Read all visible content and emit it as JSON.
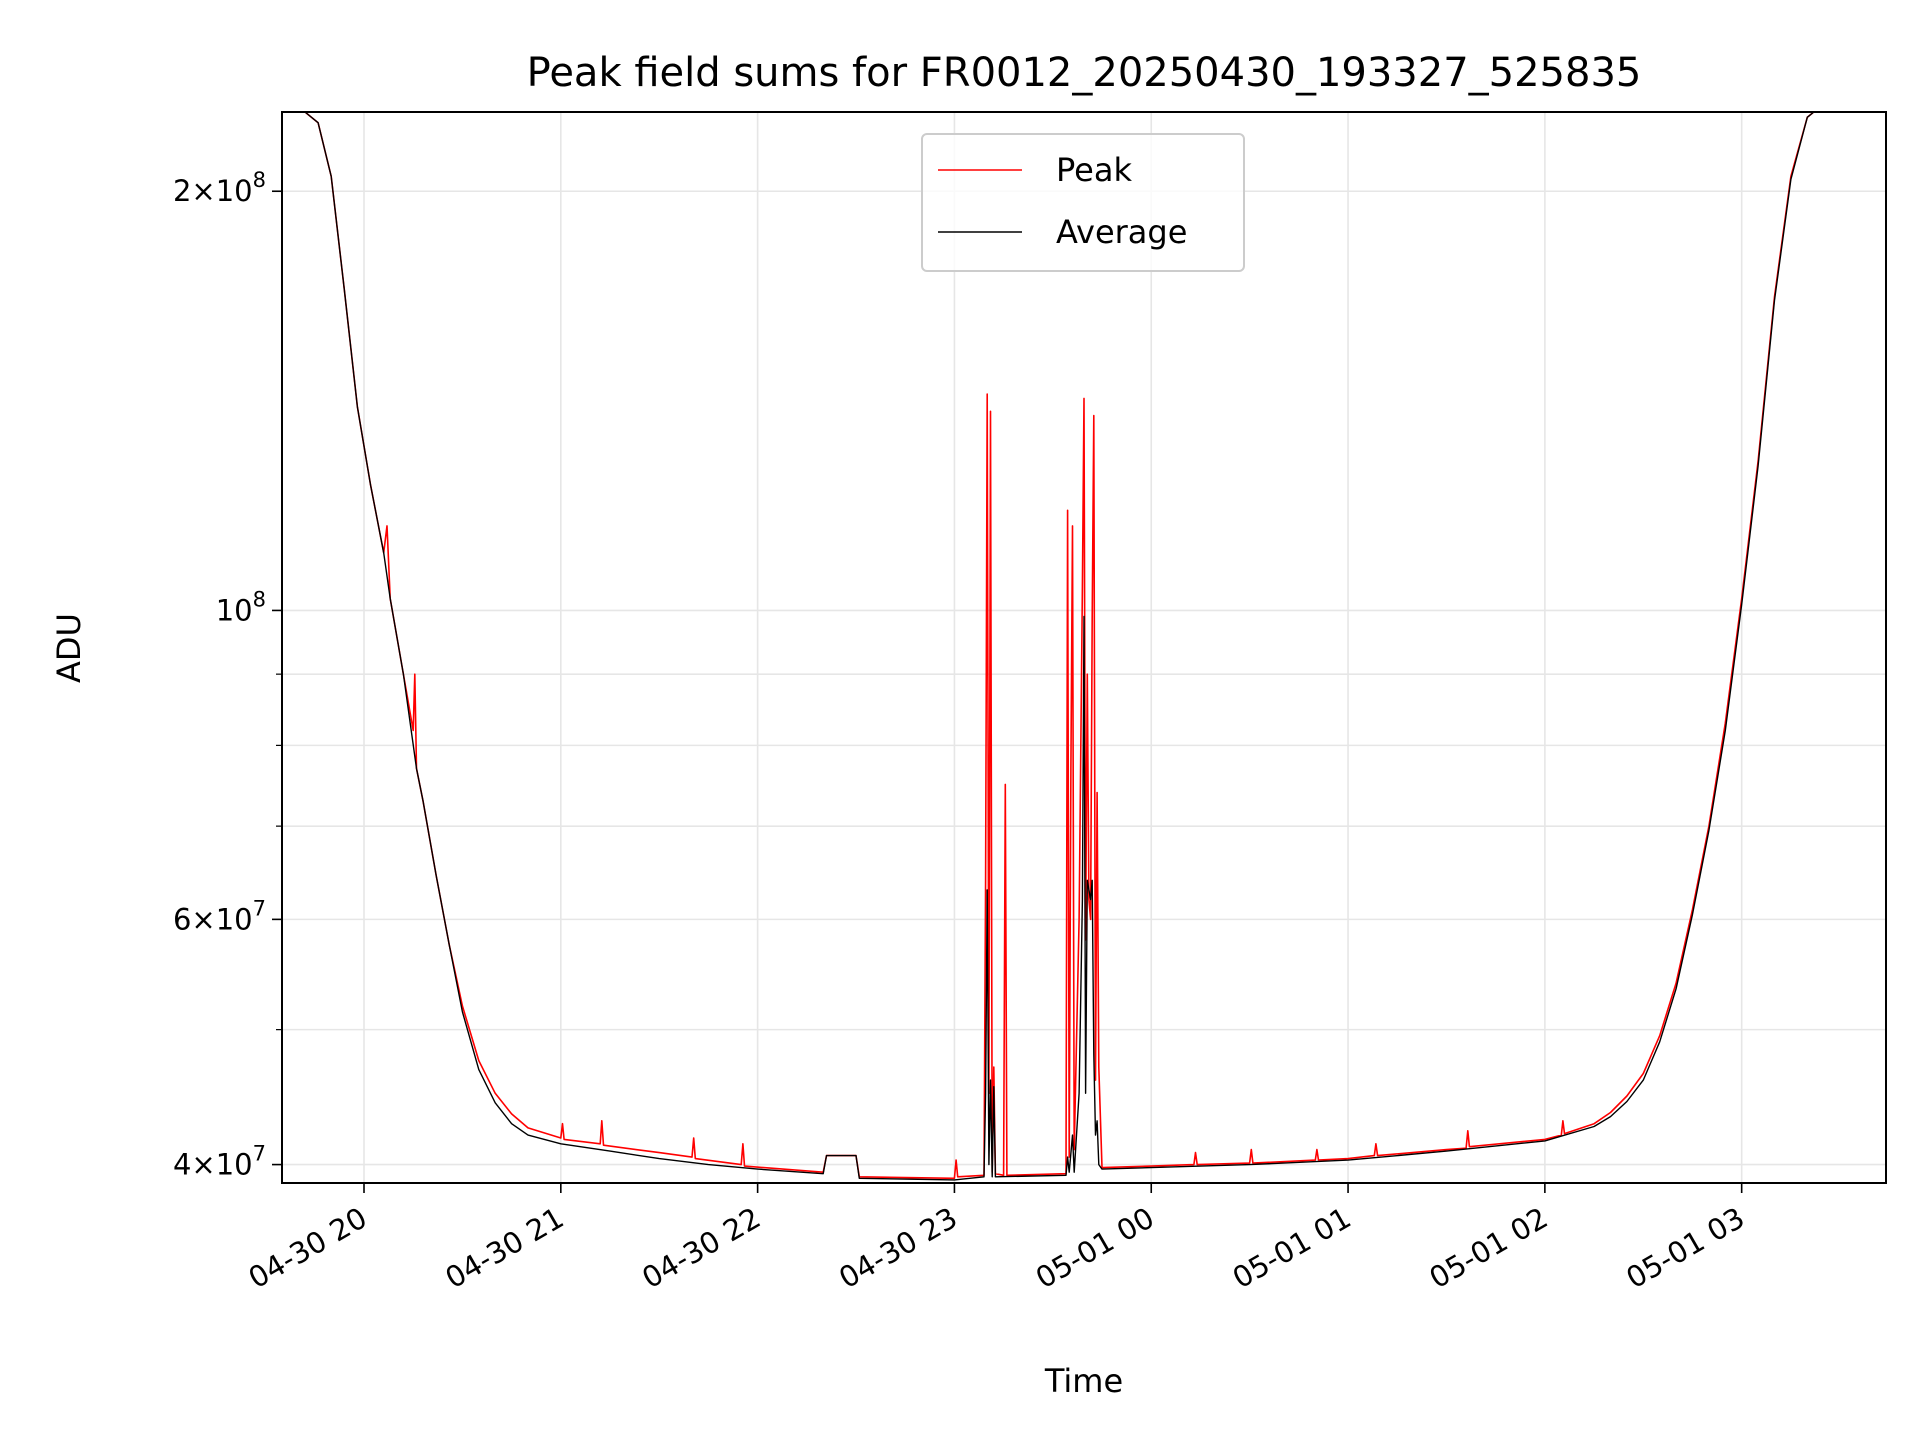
{
  "chart_data": {
    "type": "line",
    "title": "Peak field sums for FR0012_20250430_193327_525835",
    "xlabel": "Time",
    "ylabel": "ADU",
    "yscale": "log",
    "xlim": [
      "2025-04-30 19:35",
      "2025-05-01 03:44"
    ],
    "ylim": [
      38800000,
      228000000
    ],
    "grid": true,
    "legend_position": "top-center",
    "x_ticks": [
      {
        "x": "2025-04-30 20:00",
        "label": "04-30 20"
      },
      {
        "x": "2025-04-30 21:00",
        "label": "04-30 21"
      },
      {
        "x": "2025-04-30 22:00",
        "label": "04-30 22"
      },
      {
        "x": "2025-04-30 23:00",
        "label": "04-30 23"
      },
      {
        "x": "2025-05-01 00:00",
        "label": "05-01 00"
      },
      {
        "x": "2025-05-01 01:00",
        "label": "05-01 01"
      },
      {
        "x": "2025-05-01 02:00",
        "label": "05-01 02"
      },
      {
        "x": "2025-05-01 03:00",
        "label": "05-01 03"
      }
    ],
    "y_major_ticks": [
      {
        "value": 40000000,
        "mantissa": "4",
        "exp": "7"
      },
      {
        "value": 60000000,
        "mantissa": "6",
        "exp": "7"
      },
      {
        "value": 100000000,
        "mantissa": "",
        "exp": "8"
      },
      {
        "value": 200000000,
        "mantissa": "2",
        "exp": "8"
      }
    ],
    "y_minor_ticks": [
      50000000,
      70000000,
      80000000,
      90000000
    ],
    "series": [
      {
        "name": "Peak",
        "color": "#ff0000",
        "points": [
          [
            "2025-04-30 19:35",
            228000000
          ],
          [
            "2025-04-30 19:42",
            228000000
          ],
          [
            "2025-04-30 19:46",
            224000000
          ],
          [
            "2025-04-30 19:50",
            205000000
          ],
          [
            "2025-04-30 19:54",
            170000000
          ],
          [
            "2025-04-30 19:58",
            140000000
          ],
          [
            "2025-04-30 20:02",
            123000000
          ],
          [
            "2025-04-30 20:06",
            110000000
          ],
          [
            "2025-04-30 20:07",
            115000000
          ],
          [
            "2025-04-30 20:08",
            102000000
          ],
          [
            "2025-04-30 20:12",
            90000000
          ],
          [
            "2025-04-30 20:15",
            82000000
          ],
          [
            "2025-04-30 20:15.5",
            90000000
          ],
          [
            "2025-04-30 20:16",
            77000000
          ],
          [
            "2025-04-30 20:18",
            73000000
          ],
          [
            "2025-04-30 20:22",
            64500000
          ],
          [
            "2025-04-30 20:26",
            57500000
          ],
          [
            "2025-04-30 20:30",
            52000000
          ],
          [
            "2025-04-30 20:35",
            47500000
          ],
          [
            "2025-04-30 20:40",
            45000000
          ],
          [
            "2025-04-30 20:45",
            43500000
          ],
          [
            "2025-04-30 20:50",
            42500000
          ],
          [
            "2025-04-30 21:00",
            41800000
          ],
          [
            "2025-04-30 21:00.5",
            42800000
          ],
          [
            "2025-04-30 21:01",
            41700000
          ],
          [
            "2025-04-30 21:12",
            41400000
          ],
          [
            "2025-04-30 21:12.5",
            43000000
          ],
          [
            "2025-04-30 21:13",
            41300000
          ],
          [
            "2025-04-30 21:30",
            40800000
          ],
          [
            "2025-04-30 21:40",
            40500000
          ],
          [
            "2025-04-30 21:40.5",
            41800000
          ],
          [
            "2025-04-30 21:41",
            40400000
          ],
          [
            "2025-04-30 21:55",
            40000000
          ],
          [
            "2025-04-30 21:55.5",
            41400000
          ],
          [
            "2025-04-30 21:56",
            39900000
          ],
          [
            "2025-04-30 22:20",
            39500000
          ],
          [
            "2025-04-30 22:21",
            40600000
          ],
          [
            "2025-04-30 22:30",
            40600000
          ],
          [
            "2025-04-30 22:31",
            39200000
          ],
          [
            "2025-04-30 23:00",
            39100000
          ],
          [
            "2025-04-30 23:00.5",
            40300000
          ],
          [
            "2025-04-30 23:01",
            39200000
          ],
          [
            "2025-04-30 23:09",
            39300000
          ],
          [
            "2025-04-30 23:09.5",
            64000000
          ],
          [
            "2025-04-30 23:10",
            143000000
          ],
          [
            "2025-04-30 23:10.5",
            45000000
          ],
          [
            "2025-04-30 23:11",
            139000000
          ],
          [
            "2025-04-30 23:11.5",
            39500000
          ],
          [
            "2025-04-30 23:12",
            47000000
          ],
          [
            "2025-04-30 23:12.5",
            39400000
          ],
          [
            "2025-04-30 23:15",
            39300000
          ],
          [
            "2025-04-30 23:15.5",
            75000000
          ],
          [
            "2025-04-30 23:16",
            39300000
          ],
          [
            "2025-04-30 23:34",
            39400000
          ],
          [
            "2025-04-30 23:34.5",
            118000000
          ],
          [
            "2025-04-30 23:35",
            40500000
          ],
          [
            "2025-04-30 23:35.5",
            77000000
          ],
          [
            "2025-04-30 23:36",
            115000000
          ],
          [
            "2025-04-30 23:36.5",
            41000000
          ],
          [
            "2025-04-30 23:38",
            60000000
          ],
          [
            "2025-04-30 23:39",
            104000000
          ],
          [
            "2025-04-30 23:39.5",
            142000000
          ],
          [
            "2025-04-30 23:40",
            58000000
          ],
          [
            "2025-04-30 23:40.5",
            90000000
          ],
          [
            "2025-04-30 23:41",
            62000000
          ],
          [
            "2025-04-30 23:41.5",
            60000000
          ],
          [
            "2025-04-30 23:42",
            99000000
          ],
          [
            "2025-04-30 23:42.5",
            138000000
          ],
          [
            "2025-04-30 23:43",
            46000000
          ],
          [
            "2025-04-30 23:43.5",
            74000000
          ],
          [
            "2025-04-30 23:44",
            47000000
          ],
          [
            "2025-04-30 23:45",
            39800000
          ],
          [
            "2025-05-01 00:00",
            39900000
          ],
          [
            "2025-05-01 00:13",
            40000000
          ],
          [
            "2025-05-01 00:13.5",
            40800000
          ],
          [
            "2025-05-01 00:14",
            40000000
          ],
          [
            "2025-05-01 00:30",
            40100000
          ],
          [
            "2025-05-01 00:30.5",
            41000000
          ],
          [
            "2025-05-01 00:31",
            40100000
          ],
          [
            "2025-05-01 00:50",
            40300000
          ],
          [
            "2025-05-01 00:50.5",
            41000000
          ],
          [
            "2025-05-01 00:51",
            40300000
          ],
          [
            "2025-05-01 01:00",
            40400000
          ],
          [
            "2025-05-01 01:08",
            40600000
          ],
          [
            "2025-05-01 01:08.5",
            41400000
          ],
          [
            "2025-05-01 01:09",
            40600000
          ],
          [
            "2025-05-01 01:30",
            41000000
          ],
          [
            "2025-05-01 01:36",
            41100000
          ],
          [
            "2025-05-01 01:36.5",
            42300000
          ],
          [
            "2025-05-01 01:37",
            41200000
          ],
          [
            "2025-05-01 02:00",
            41700000
          ],
          [
            "2025-05-01 02:05",
            42000000
          ],
          [
            "2025-05-01 02:05.5",
            43000000
          ],
          [
            "2025-05-01 02:06",
            42100000
          ],
          [
            "2025-05-01 02:15",
            42800000
          ],
          [
            "2025-05-01 02:20",
            43600000
          ],
          [
            "2025-05-01 02:25",
            44800000
          ],
          [
            "2025-05-01 02:30",
            46500000
          ],
          [
            "2025-05-01 02:35",
            49500000
          ],
          [
            "2025-05-01 02:40",
            54000000
          ],
          [
            "2025-05-01 02:45",
            61000000
          ],
          [
            "2025-05-01 02:50",
            70000000
          ],
          [
            "2025-05-01 02:55",
            83000000
          ],
          [
            "2025-05-01 03:00",
            102000000
          ],
          [
            "2025-05-01 03:05",
            128000000
          ],
          [
            "2025-05-01 03:10",
            168000000
          ],
          [
            "2025-05-01 03:15",
            205000000
          ],
          [
            "2025-05-01 03:20",
            226000000
          ],
          [
            "2025-05-01 03:22",
            228000000
          ],
          [
            "2025-05-01 03:44",
            228000000
          ]
        ]
      },
      {
        "name": "Average",
        "color": "#000000",
        "points": [
          [
            "2025-04-30 19:35",
            228000000
          ],
          [
            "2025-04-30 19:42",
            228000000
          ],
          [
            "2025-04-30 19:46",
            224000000
          ],
          [
            "2025-04-30 19:50",
            205000000
          ],
          [
            "2025-04-30 19:54",
            170000000
          ],
          [
            "2025-04-30 19:58",
            140000000
          ],
          [
            "2025-04-30 20:02",
            123000000
          ],
          [
            "2025-04-30 20:06",
            110000000
          ],
          [
            "2025-04-30 20:08",
            102000000
          ],
          [
            "2025-04-30 20:12",
            90000000
          ],
          [
            "2025-04-30 20:16",
            77000000
          ],
          [
            "2025-04-30 20:18",
            73000000
          ],
          [
            "2025-04-30 20:22",
            64500000
          ],
          [
            "2025-04-30 20:26",
            57500000
          ],
          [
            "2025-04-30 20:30",
            51500000
          ],
          [
            "2025-04-30 20:35",
            46800000
          ],
          [
            "2025-04-30 20:40",
            44300000
          ],
          [
            "2025-04-30 20:45",
            42800000
          ],
          [
            "2025-04-30 20:50",
            42000000
          ],
          [
            "2025-04-30 21:00",
            41400000
          ],
          [
            "2025-04-30 21:15",
            40900000
          ],
          [
            "2025-04-30 21:30",
            40400000
          ],
          [
            "2025-04-30 21:45",
            40000000
          ],
          [
            "2025-04-30 22:00",
            39700000
          ],
          [
            "2025-04-30 22:20",
            39400000
          ],
          [
            "2025-04-30 22:21",
            40600000
          ],
          [
            "2025-04-30 22:30",
            40600000
          ],
          [
            "2025-04-30 22:31",
            39100000
          ],
          [
            "2025-04-30 23:00",
            39000000
          ],
          [
            "2025-04-30 23:09",
            39200000
          ],
          [
            "2025-04-30 23:09.5",
            45000000
          ],
          [
            "2025-04-30 23:10",
            63000000
          ],
          [
            "2025-04-30 23:10.5",
            40000000
          ],
          [
            "2025-04-30 23:11",
            46000000
          ],
          [
            "2025-04-30 23:11.5",
            39200000
          ],
          [
            "2025-04-30 23:12",
            45500000
          ],
          [
            "2025-04-30 23:12.5",
            39200000
          ],
          [
            "2025-04-30 23:34",
            39300000
          ],
          [
            "2025-04-30 23:34.5",
            40500000
          ],
          [
            "2025-04-30 23:35",
            39500000
          ],
          [
            "2025-04-30 23:36",
            42000000
          ],
          [
            "2025-04-30 23:36.5",
            39500000
          ],
          [
            "2025-04-30 23:38",
            45000000
          ],
          [
            "2025-04-30 23:39",
            62000000
          ],
          [
            "2025-04-30 23:39.5",
            99000000
          ],
          [
            "2025-04-30 23:40",
            45000000
          ],
          [
            "2025-04-30 23:40.5",
            64000000
          ],
          [
            "2025-04-30 23:41",
            63000000
          ],
          [
            "2025-04-30 23:41.5",
            62000000
          ],
          [
            "2025-04-30 23:42",
            64000000
          ],
          [
            "2025-04-30 23:42.5",
            48000000
          ],
          [
            "2025-04-30 23:43",
            42000000
          ],
          [
            "2025-04-30 23:43.5",
            43000000
          ],
          [
            "2025-04-30 23:44",
            40000000
          ],
          [
            "2025-04-30 23:45",
            39700000
          ],
          [
            "2025-05-01 00:00",
            39800000
          ],
          [
            "2025-05-01 00:30",
            40000000
          ],
          [
            "2025-05-01 01:00",
            40300000
          ],
          [
            "2025-05-01 01:30",
            40900000
          ],
          [
            "2025-05-01 02:00",
            41600000
          ],
          [
            "2025-05-01 02:15",
            42600000
          ],
          [
            "2025-05-01 02:20",
            43300000
          ],
          [
            "2025-05-01 02:25",
            44400000
          ],
          [
            "2025-05-01 02:30",
            46000000
          ],
          [
            "2025-05-01 02:35",
            49000000
          ],
          [
            "2025-05-01 02:40",
            53500000
          ],
          [
            "2025-05-01 02:45",
            60500000
          ],
          [
            "2025-05-01 02:50",
            69500000
          ],
          [
            "2025-05-01 02:55",
            82000000
          ],
          [
            "2025-05-01 03:00",
            101000000
          ],
          [
            "2025-05-01 03:05",
            127000000
          ],
          [
            "2025-05-01 03:10",
            167000000
          ],
          [
            "2025-05-01 03:15",
            204000000
          ],
          [
            "2025-05-01 03:20",
            226000000
          ],
          [
            "2025-05-01 03:22",
            228000000
          ],
          [
            "2025-05-01 03:44",
            228000000
          ]
        ]
      }
    ]
  }
}
